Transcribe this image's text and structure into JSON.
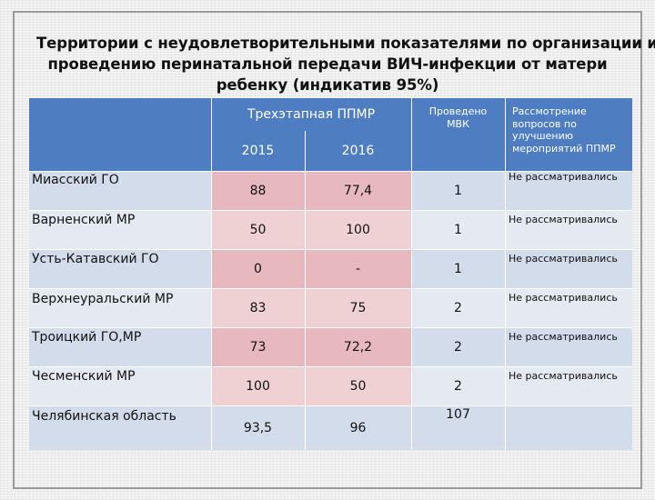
{
  "title": {
    "line1": "Территории с неудовлетворительными показателями по организации и",
    "line2": "проведению перинатальной передачи ВИЧ-инфекции от матери",
    "line3": "ребенку (индикатив 95%)"
  },
  "table": {
    "header": {
      "group": "Трехэтапная ППМР",
      "year1": "2015",
      "year2": "2016",
      "mvk": "Проведено МВК",
      "review": "Рассмотрение вопросов по улучшению мероприятий ППМР"
    },
    "rows": [
      {
        "name": "Миасский ГО",
        "v2015": "88",
        "v2016": "77,4",
        "mvk": "1",
        "review": "Не рассматривались"
      },
      {
        "name": "Варненский  МР",
        "v2015": "50",
        "v2016": "100",
        "mvk": "1",
        "review": "Не рассматривались"
      },
      {
        "name": "Усть-Катавский ГО",
        "v2015": "0",
        "v2016": "-",
        "mvk": "1",
        "review": "Не рассматривались"
      },
      {
        "name": "Верхнеуральский МР",
        "v2015": "83",
        "v2016": "75",
        "mvk": "2",
        "review": "Не рассматривались"
      },
      {
        "name": "Троицкий ГО,МР",
        "v2015": "73",
        "v2016": "72,2",
        "mvk": "2",
        "review": "Не рассматривались"
      },
      {
        "name": "Чесменский МР",
        "v2015": "100",
        "v2016": "50",
        "mvk": "2",
        "review": "Не рассматривались"
      },
      {
        "name": "Челябинская область",
        "v2015": "93,5",
        "v2016": "96",
        "mvk": "107",
        "review": ""
      }
    ]
  }
}
